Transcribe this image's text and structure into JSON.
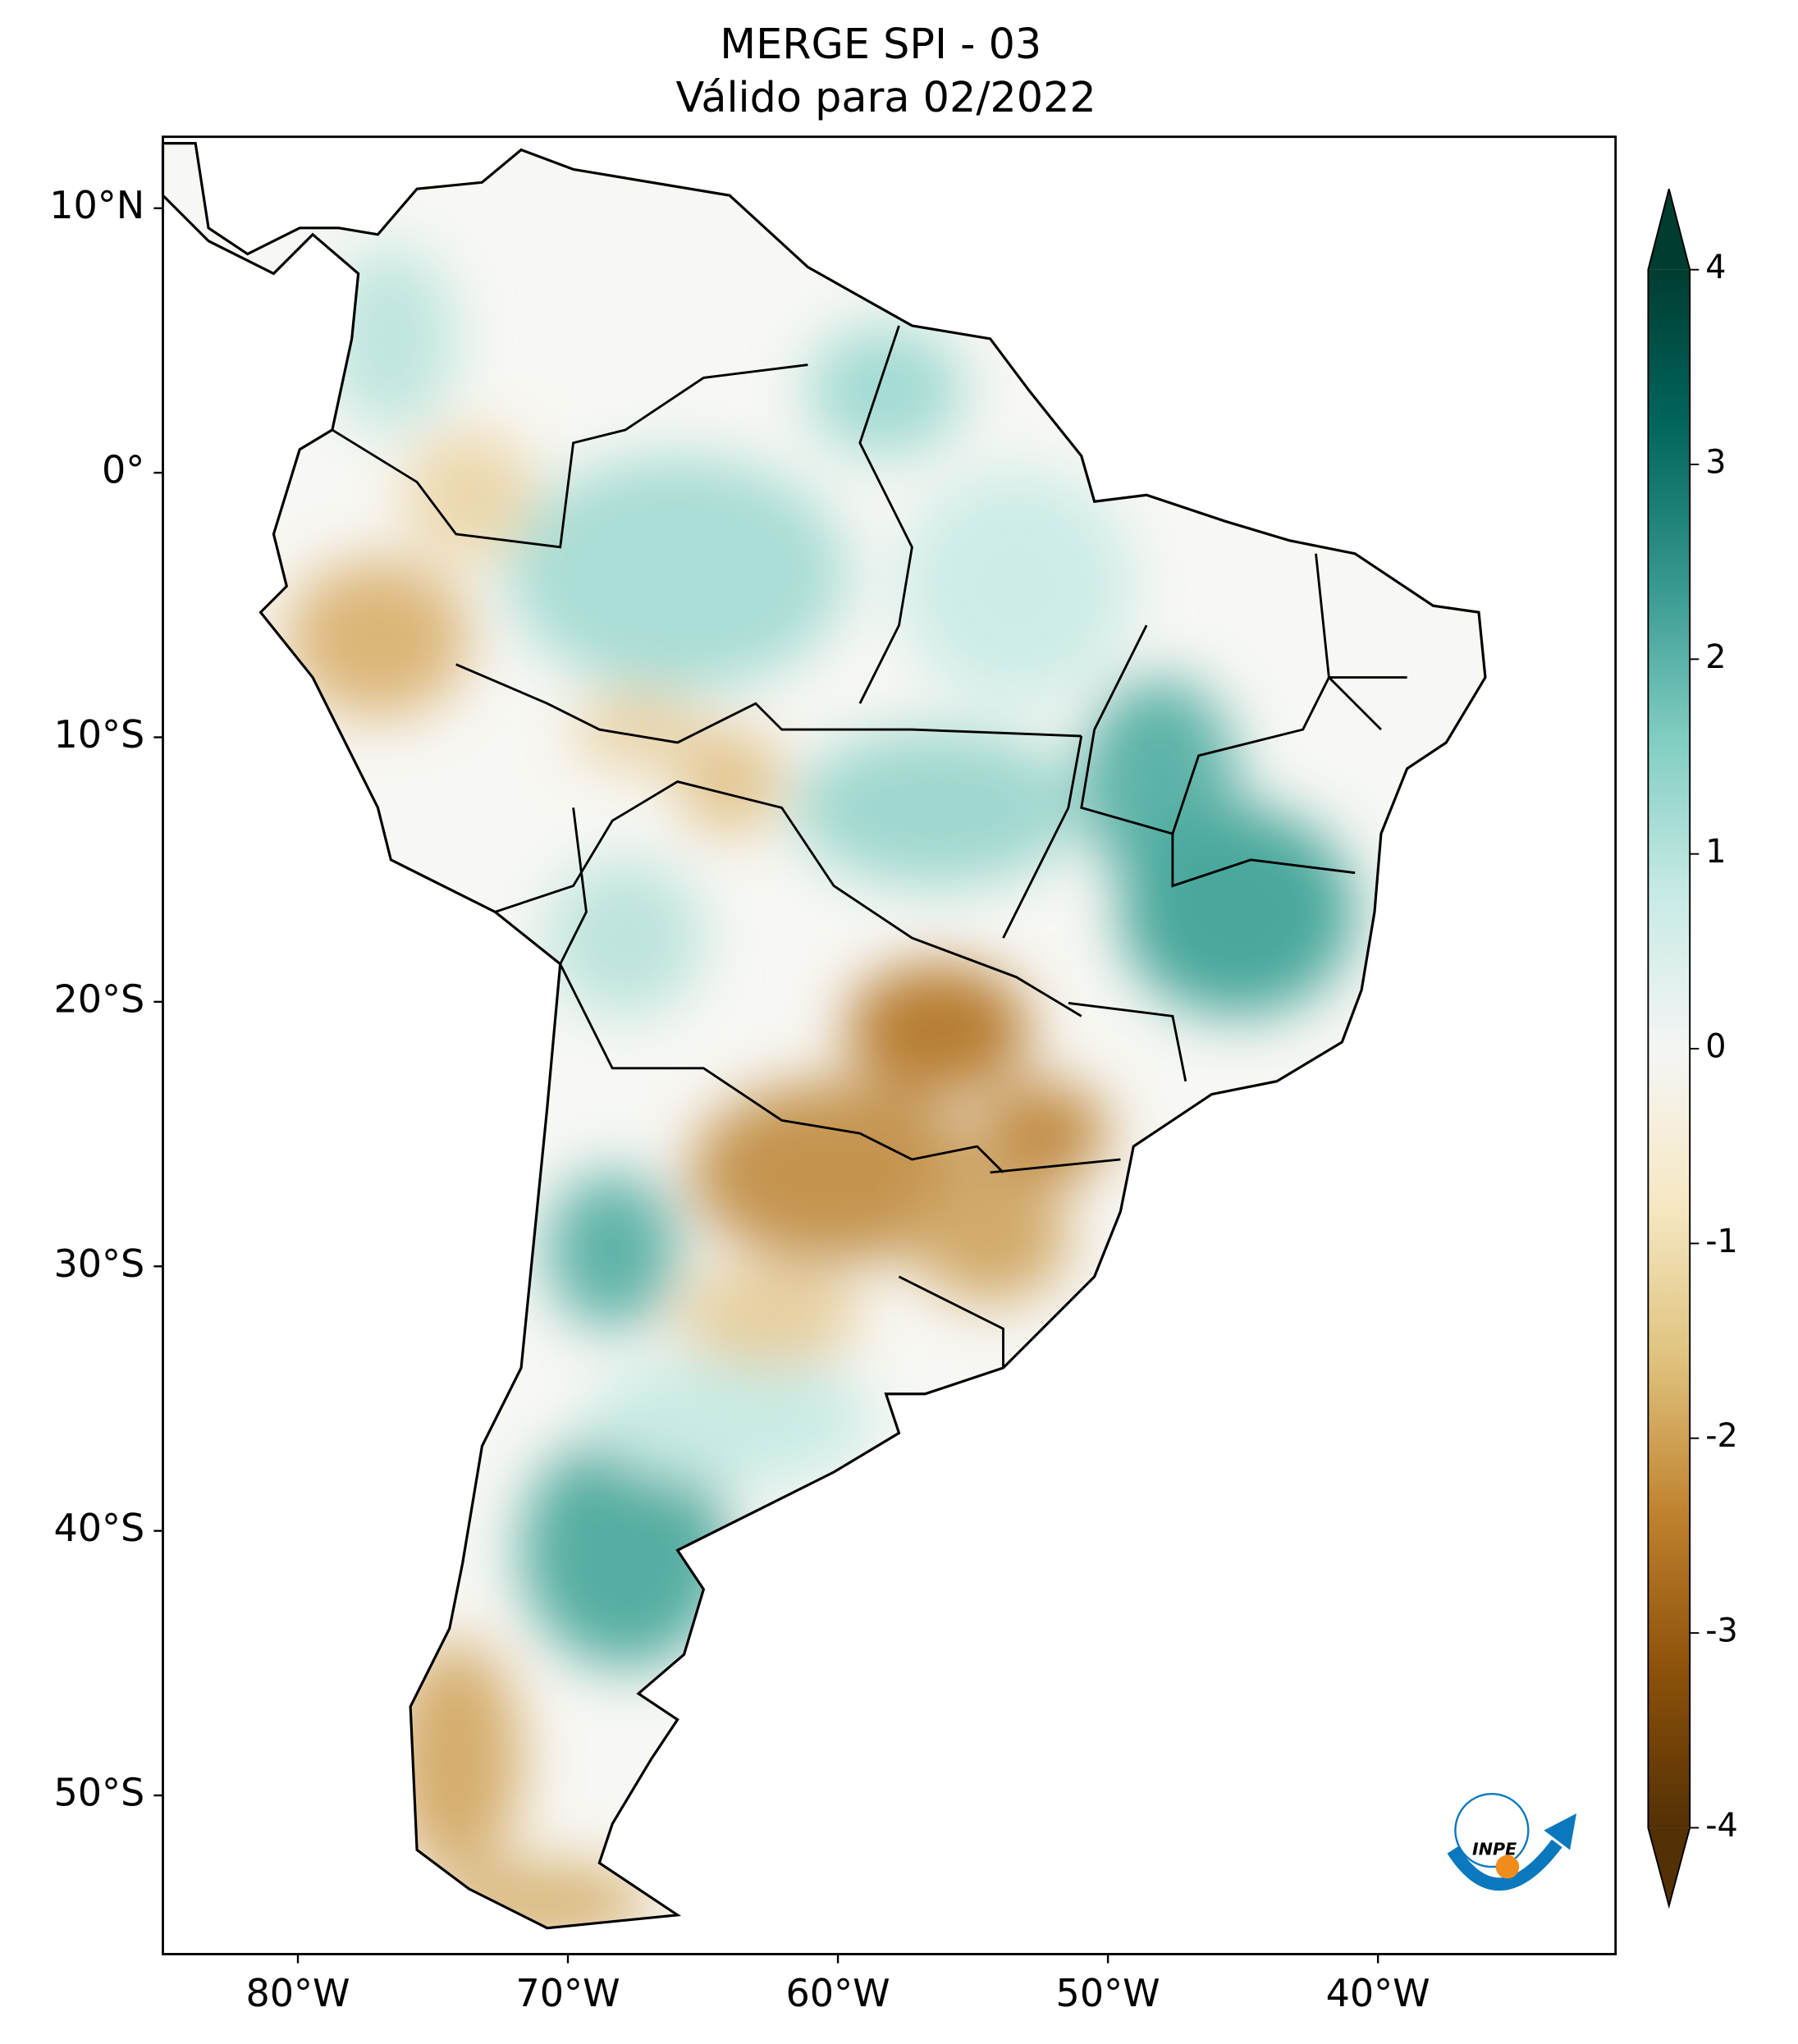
{
  "title": [
    "MERGE   SPI - 03",
    "Válido para 02/2022"
  ],
  "map": {
    "lon_lim": [
      -85,
      -31.2
    ],
    "lat_lim": [
      12.7,
      -56
    ],
    "lon_ticks": [
      {
        "value": -80,
        "label": "80°W"
      },
      {
        "value": -70,
        "label": "70°W"
      },
      {
        "value": -60,
        "label": "60°W"
      },
      {
        "value": -50,
        "label": "50°W"
      },
      {
        "value": -40,
        "label": "40°W"
      }
    ],
    "lat_ticks": [
      {
        "value": 10,
        "label": "10°N"
      },
      {
        "value": 0,
        "label": "0°"
      },
      {
        "value": -10,
        "label": "10°S"
      },
      {
        "value": -20,
        "label": "20°S"
      },
      {
        "value": -30,
        "label": "30°S"
      },
      {
        "value": -40,
        "label": "40°S"
      },
      {
        "value": -50,
        "label": "50°S"
      }
    ]
  },
  "colorbar": {
    "lim": [
      -4,
      4
    ],
    "ticks": [
      4,
      3,
      2,
      1,
      0,
      -1,
      -2,
      -3,
      -4
    ],
    "colors": [
      "#543005",
      "#8c510a",
      "#bf812d",
      "#dfc27d",
      "#f6e8c3",
      "#f5f5f5",
      "#c7eae5",
      "#80cdc1",
      "#35978f",
      "#01665e",
      "#003c30"
    ]
  },
  "logo": "INPE"
}
